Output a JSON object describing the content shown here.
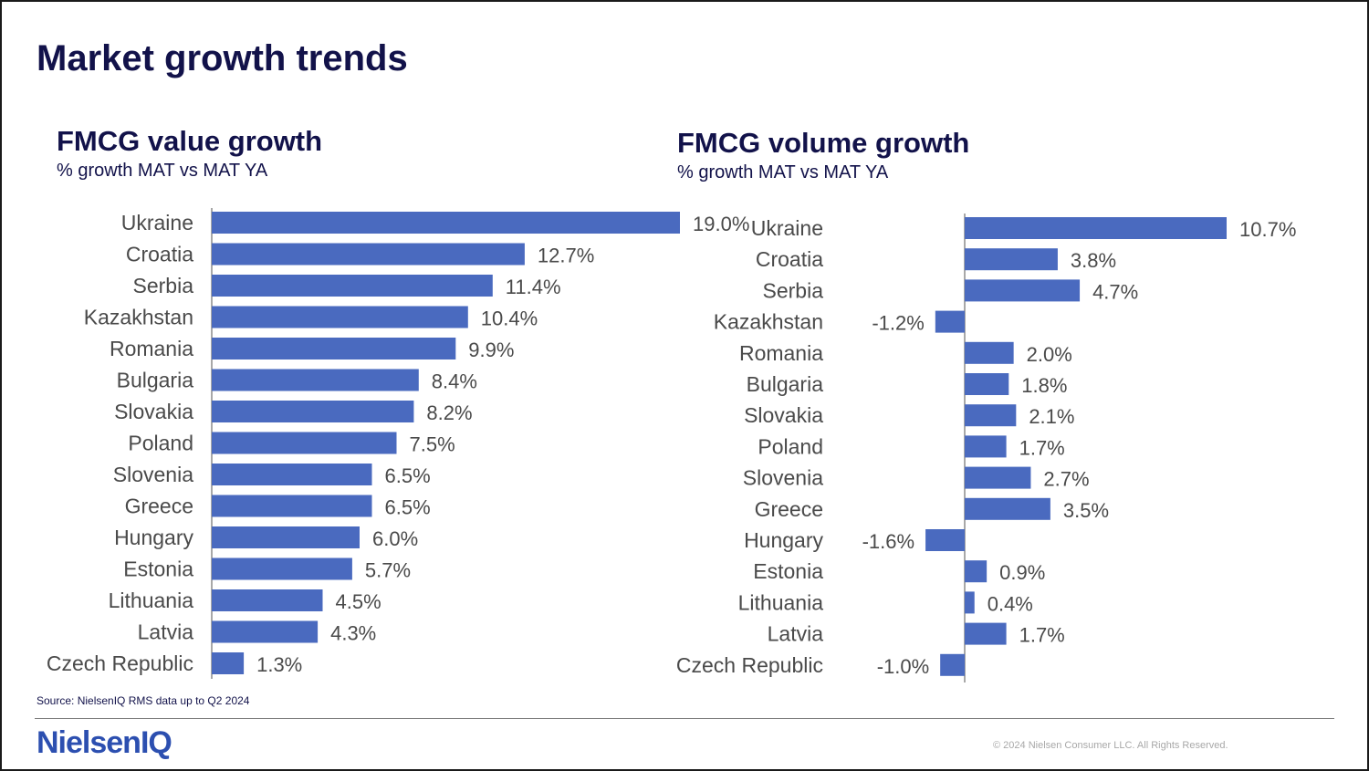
{
  "page": {
    "title": "Market growth trends",
    "source": "Source: NielsenIQ RMS data up to Q2 2024",
    "logo": "NielsenIQ",
    "copyright": "© 2024 Nielsen Consumer LLC. All Rights Reserved."
  },
  "colors": {
    "bar": "#4a6abf",
    "title": "#12124a",
    "logo": "#2c4fb0"
  },
  "chart_data": [
    {
      "type": "bar",
      "orientation": "horizontal",
      "title": "FMCG value growth",
      "subtitle": "% growth MAT vs MAT YA",
      "categories": [
        "Ukraine",
        "Croatia",
        "Serbia",
        "Kazakhstan",
        "Romania",
        "Bulgaria",
        "Slovakia",
        "Poland",
        "Slovenia",
        "Greece",
        "Hungary",
        "Estonia",
        "Lithuania",
        "Latvia",
        "Czech Republic"
      ],
      "values": [
        19.0,
        12.7,
        11.4,
        10.4,
        9.9,
        8.4,
        8.2,
        7.5,
        6.5,
        6.5,
        6.0,
        5.7,
        4.5,
        4.3,
        1.3
      ],
      "value_labels": [
        "19.0%",
        "12.7%",
        "11.4%",
        "10.4%",
        "9.9%",
        "8.4%",
        "8.2%",
        "7.5%",
        "6.5%",
        "6.5%",
        "6.0%",
        "5.7%",
        "4.5%",
        "4.3%",
        "1.3%"
      ],
      "unit": "%",
      "xlim": [
        0,
        19.0
      ]
    },
    {
      "type": "bar",
      "orientation": "horizontal",
      "title": "FMCG volume growth",
      "subtitle": "% growth MAT vs MAT YA",
      "categories": [
        "Ukraine",
        "Croatia",
        "Serbia",
        "Kazakhstan",
        "Romania",
        "Bulgaria",
        "Slovakia",
        "Poland",
        "Slovenia",
        "Greece",
        "Hungary",
        "Estonia",
        "Lithuania",
        "Latvia",
        "Czech Republic"
      ],
      "values": [
        10.7,
        3.8,
        4.7,
        -1.2,
        2.0,
        1.8,
        2.1,
        1.7,
        2.7,
        3.5,
        -1.6,
        0.9,
        0.4,
        1.7,
        -1.0
      ],
      "value_labels": [
        "10.7%",
        "3.8%",
        "4.7%",
        "-1.2%",
        "2.0%",
        "1.8%",
        "2.1%",
        "1.7%",
        "2.7%",
        "3.5%",
        "-1.6%",
        "0.9%",
        "0.4%",
        "1.7%",
        "-1.0%"
      ],
      "unit": "%",
      "xlim": [
        -1.6,
        10.7
      ]
    }
  ]
}
